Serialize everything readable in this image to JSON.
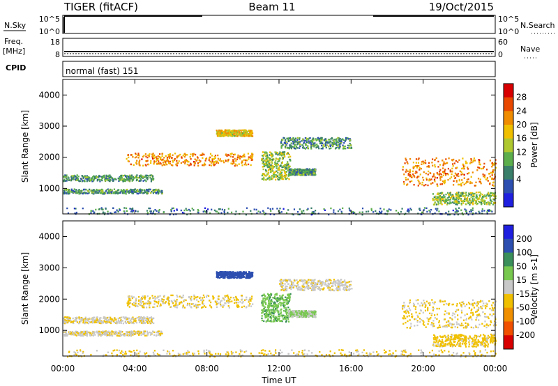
{
  "header": {
    "radar": "TIGER (fitACF)",
    "beam": "Beam 11",
    "date": "19/Oct/2015"
  },
  "panels": {
    "nsky_label": "N.Sky",
    "nsearch_label": "N.Search",
    "nsky_ticks": [
      "10^5",
      "10^0"
    ],
    "nsearch_ticks": [
      "10^5",
      "10^0"
    ],
    "freq_label": "Freq.",
    "freq_unit": "[MHz]",
    "freq_ticks": [
      "18",
      "8"
    ],
    "nave_label": "Nave",
    "nave_ticks": [
      "60",
      "0"
    ],
    "cpid_label": "CPID",
    "cpid_text": "normal (fast) 151"
  },
  "chart_data": {
    "type": "heatmap",
    "xlabel": "Time UT",
    "x_ticks": [
      "00:00",
      "04:00",
      "08:00",
      "12:00",
      "16:00",
      "20:00",
      "00:00"
    ],
    "x_range_hours": [
      0,
      24
    ],
    "panels": [
      {
        "ylabel": "Slant Range [km]",
        "y_ticks": [
          1000,
          2000,
          3000,
          4000
        ],
        "ylim": [
          180,
          4500
        ],
        "colorbar_label": "Power [dB]",
        "colorbar_ticks": [
          "28",
          "24",
          "20",
          "16",
          "12",
          "8",
          "4"
        ],
        "colors": [
          "#1f1fe0",
          "#2d4fb0",
          "#3a7f6a",
          "#5cae4c",
          "#b0c830",
          "#f0c000",
          "#f08c00",
          "#e84800",
          "#d80000"
        ]
      },
      {
        "ylabel": "Slant Range [km]",
        "y_ticks": [
          1000,
          2000,
          3000,
          4000
        ],
        "ylim": [
          180,
          4500
        ],
        "colorbar_label": "Velocity [m s-1]",
        "colorbar_ticks": [
          "200",
          "100",
          "50",
          "15",
          "-15",
          "-50",
          "-100",
          "-200"
        ],
        "colors": [
          "#d80000",
          "#f05000",
          "#f09000",
          "#f0c000",
          "#c8c8c8",
          "#78c850",
          "#3a8f5a",
          "#2d4fb0",
          "#1f1fe0"
        ]
      }
    ],
    "echo_regions": [
      {
        "t": [
          0.0,
          5.5
        ],
        "r": [
          850,
          1000
        ],
        "power": 10,
        "velocity": -10
      },
      {
        "t": [
          0.0,
          5.0
        ],
        "r": [
          1250,
          1450
        ],
        "power": 10,
        "velocity": -10
      },
      {
        "t": [
          3.5,
          10.5
        ],
        "r": [
          1750,
          2150
        ],
        "power": 22,
        "velocity": -20
      },
      {
        "t": [
          8.5,
          10.5
        ],
        "r": [
          2700,
          2900
        ],
        "power": 18,
        "velocity": 150
      },
      {
        "t": [
          11.0,
          12.6
        ],
        "r": [
          1300,
          2200
        ],
        "power": 14,
        "velocity": 40
      },
      {
        "t": [
          12.5,
          14.0
        ],
        "r": [
          1450,
          1650
        ],
        "power": 10,
        "velocity": 20
      },
      {
        "t": [
          12.0,
          16.0
        ],
        "r": [
          2300,
          2650
        ],
        "power": 10,
        "velocity": -5
      },
      {
        "t": [
          18.8,
          24.0
        ],
        "r": [
          1100,
          2000
        ],
        "power": 22,
        "velocity": -20
      },
      {
        "t": [
          20.5,
          24.0
        ],
        "r": [
          500,
          900
        ],
        "power": 14,
        "velocity": -30
      },
      {
        "t": [
          0.0,
          24.0
        ],
        "r": [
          180,
          400
        ],
        "power": 8,
        "velocity": -20
      }
    ]
  }
}
